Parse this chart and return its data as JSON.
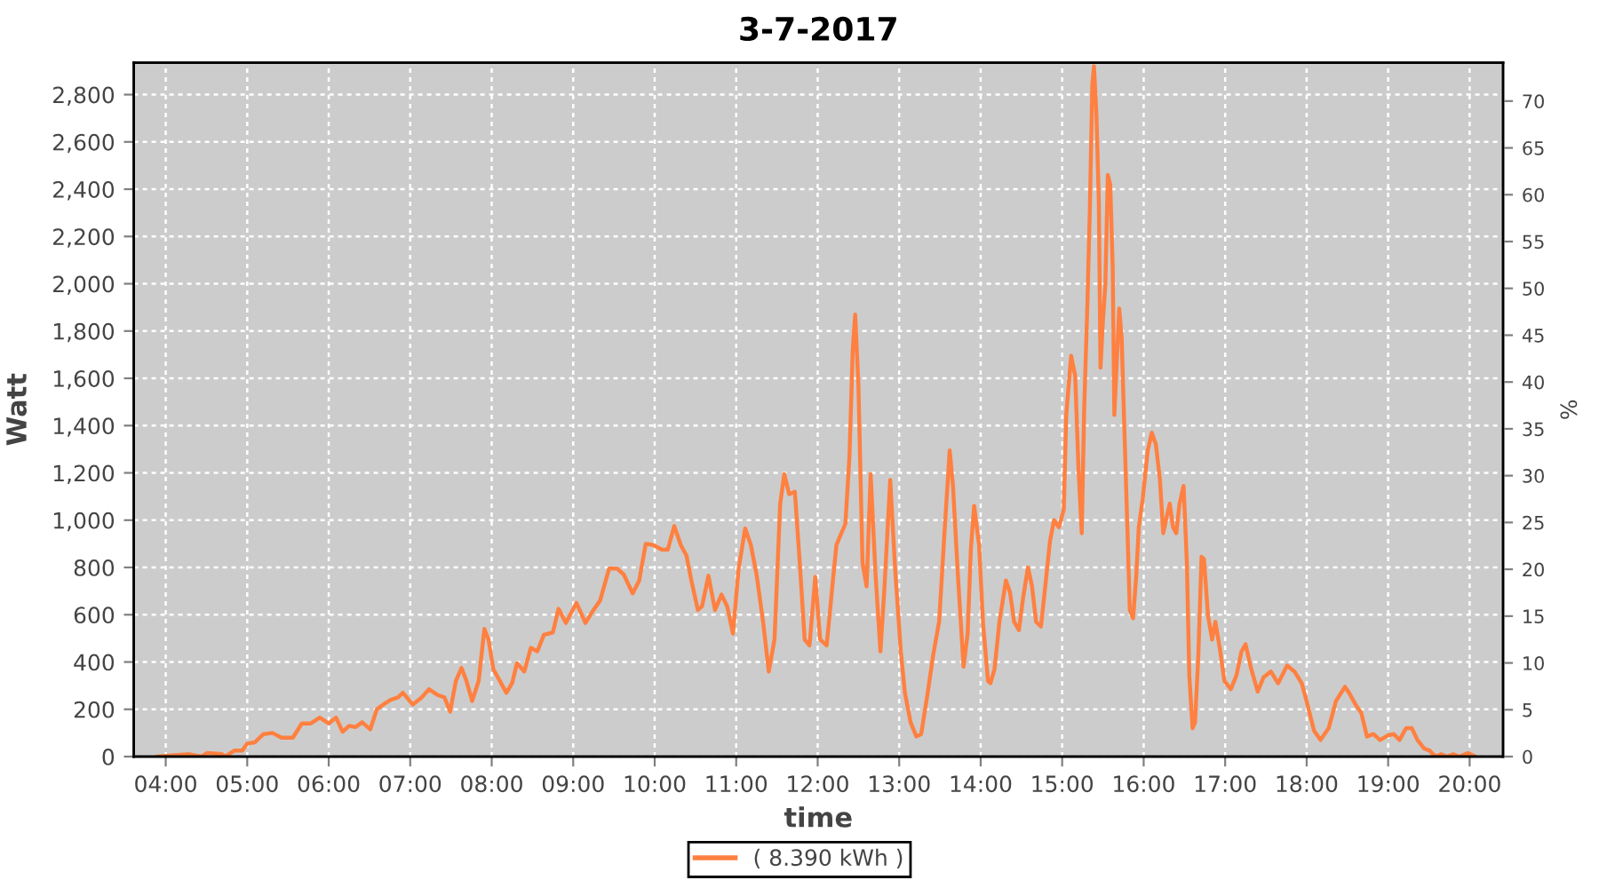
{
  "chart_data": {
    "type": "line",
    "title": "3-7-2017",
    "xlabel": "time",
    "ylabel": "Watt",
    "y2label": "%",
    "xlim": [
      3.608,
      20.41
    ],
    "xticks": [
      {
        "value": 4,
        "label": "04:00"
      },
      {
        "value": 5,
        "label": "05:00"
      },
      {
        "value": 6,
        "label": "06:00"
      },
      {
        "value": 7,
        "label": "07:00"
      },
      {
        "value": 8,
        "label": "08:00"
      },
      {
        "value": 9,
        "label": "09:00"
      },
      {
        "value": 10,
        "label": "10:00"
      },
      {
        "value": 11,
        "label": "11:00"
      },
      {
        "value": 12,
        "label": "12:00"
      },
      {
        "value": 13,
        "label": "13:00"
      },
      {
        "value": 14,
        "label": "14:00"
      },
      {
        "value": 15,
        "label": "15:00"
      },
      {
        "value": 16,
        "label": "16:00"
      },
      {
        "value": 17,
        "label": "17:00"
      },
      {
        "value": 18,
        "label": "18:00"
      },
      {
        "value": 19,
        "label": "19:00"
      },
      {
        "value": 20,
        "label": "20:00"
      }
    ],
    "ylim": [
      0,
      2935
    ],
    "yticks": [
      0,
      200,
      400,
      600,
      800,
      {
        "value": 1000,
        "label": "1,000"
      },
      {
        "value": 1200,
        "label": "1,200"
      },
      {
        "value": 1400,
        "label": "1,400"
      },
      {
        "value": 1600,
        "label": "1,600"
      },
      {
        "value": 1800,
        "label": "1,800"
      },
      {
        "value": 2000,
        "label": "2,000"
      },
      {
        "value": 2200,
        "label": "2,200"
      },
      {
        "value": 2400,
        "label": "2,400"
      },
      {
        "value": 2600,
        "label": "2,600"
      },
      {
        "value": 2800,
        "label": "2,800"
      }
    ],
    "y2lim": [
      0,
      74.1
    ],
    "y2ticks": [
      0,
      5,
      10,
      15,
      20,
      25,
      30,
      35,
      40,
      45,
      50,
      55,
      60,
      65,
      70
    ],
    "grid": true,
    "legend": "bottom",
    "line_style": "solid",
    "x": [
      3.89,
      4.29,
      4.44,
      4.51,
      4.69,
      4.73,
      4.84,
      4.94,
      5.0,
      5.09,
      5.2,
      5.31,
      5.42,
      5.56,
      5.67,
      5.78,
      5.89,
      6.0,
      6.09,
      6.17,
      6.25,
      6.33,
      6.41,
      6.51,
      6.59,
      6.69,
      6.76,
      6.85,
      6.91,
      7.03,
      7.14,
      7.23,
      7.34,
      7.42,
      7.49,
      7.56,
      7.63,
      7.69,
      7.76,
      7.84,
      7.91,
      7.96,
      8.02,
      8.1,
      8.18,
      8.25,
      8.31,
      8.4,
      8.48,
      8.56,
      8.64,
      8.75,
      8.82,
      8.91,
      9.04,
      9.15,
      9.23,
      9.33,
      9.44,
      9.54,
      9.62,
      9.73,
      9.81,
      9.89,
      9.98,
      10.09,
      10.16,
      10.24,
      10.32,
      10.39,
      10.45,
      10.53,
      10.58,
      10.66,
      10.74,
      10.82,
      10.89,
      10.96,
      11.03,
      11.11,
      11.18,
      11.25,
      11.33,
      11.4,
      11.47,
      11.54,
      11.59,
      11.65,
      11.72,
      11.78,
      11.84,
      11.9,
      11.97,
      12.03,
      12.11,
      12.18,
      12.23,
      12.34,
      12.39,
      12.43,
      12.46,
      12.5,
      12.55,
      12.6,
      12.65,
      12.71,
      12.77,
      12.82,
      12.89,
      12.95,
      13.02,
      13.07,
      13.14,
      13.21,
      13.27,
      13.35,
      13.42,
      13.49,
      13.56,
      13.62,
      13.66,
      13.72,
      13.79,
      13.84,
      13.88,
      13.92,
      13.98,
      14.03,
      14.09,
      14.12,
      14.17,
      14.23,
      14.31,
      14.36,
      14.41,
      14.47,
      14.52,
      14.58,
      14.63,
      14.68,
      14.74,
      14.8,
      14.85,
      14.9,
      14.96,
      15.02,
      15.05,
      15.11,
      15.16,
      15.2,
      15.24,
      15.27,
      15.31,
      15.34,
      15.37,
      15.39,
      15.42,
      15.45,
      15.47,
      15.5,
      15.53,
      15.56,
      15.59,
      15.62,
      15.64,
      15.67,
      15.7,
      15.73,
      15.76,
      15.8,
      15.83,
      15.87,
      15.91,
      15.94,
      15.99,
      16.05,
      16.1,
      16.15,
      16.2,
      16.24,
      16.28,
      16.32,
      16.36,
      16.4,
      16.44,
      16.49,
      16.53,
      16.56,
      16.6,
      16.63,
      16.67,
      16.71,
      16.74,
      16.79,
      16.84,
      16.88,
      16.94,
      16.99,
      17.07,
      17.14,
      17.2,
      17.25,
      17.32,
      17.4,
      17.47,
      17.56,
      17.65,
      17.76,
      17.85,
      17.94,
      18.01,
      18.09,
      18.17,
      18.27,
      18.36,
      18.47,
      18.52,
      18.6,
      18.67,
      18.74,
      18.82,
      18.9,
      19.0,
      19.07,
      19.14,
      19.22,
      19.29,
      19.36,
      19.44,
      19.51,
      19.58,
      19.65,
      19.72,
      19.8,
      19.87,
      19.98,
      20.07
    ],
    "series": [
      {
        "name": "( 8.390 kWh )",
        "color": "#ff8040",
        "values": [
          0,
          10,
          0,
          15,
          10,
          0,
          25,
          25,
          55,
          60,
          95,
          100,
          80,
          80,
          140,
          140,
          165,
          140,
          165,
          105,
          130,
          125,
          145,
          115,
          200,
          225,
          240,
          250,
          270,
          220,
          250,
          285,
          260,
          250,
          190,
          320,
          375,
          320,
          235,
          320,
          540,
          495,
          370,
          320,
          270,
          310,
          395,
          360,
          460,
          445,
          515,
          525,
          625,
          565,
          650,
          565,
          610,
          660,
          795,
          795,
          770,
          690,
          745,
          900,
          895,
          875,
          875,
          975,
          895,
          850,
          745,
          620,
          635,
          765,
          620,
          685,
          635,
          520,
          795,
          965,
          895,
          770,
          570,
          360,
          495,
          1070,
          1195,
          1110,
          1120,
          820,
          495,
          470,
          760,
          495,
          470,
          720,
          895,
          985,
          1270,
          1720,
          1870,
          1570,
          820,
          720,
          1195,
          770,
          445,
          720,
          1170,
          795,
          445,
          270,
          145,
          85,
          95,
          270,
          435,
          570,
          970,
          1295,
          1145,
          770,
          380,
          520,
          880,
          1060,
          895,
          560,
          320,
          310,
          370,
          570,
          745,
          695,
          570,
          535,
          670,
          800,
          720,
          570,
          550,
          745,
          910,
          1000,
          970,
          1045,
          1445,
          1695,
          1610,
          1220,
          945,
          1470,
          1920,
          2320,
          2845,
          2920,
          2720,
          2345,
          1645,
          1845,
          1995,
          2460,
          2420,
          2070,
          1445,
          1670,
          1895,
          1770,
          1420,
          970,
          620,
          585,
          770,
          970,
          1095,
          1295,
          1370,
          1320,
          1170,
          945,
          1010,
          1070,
          970,
          945,
          1070,
          1145,
          820,
          345,
          120,
          145,
          420,
          845,
          835,
          595,
          495,
          570,
          445,
          320,
          285,
          345,
          445,
          475,
          370,
          275,
          335,
          360,
          310,
          385,
          360,
          310,
          220,
          110,
          70,
          120,
          235,
          295,
          270,
          220,
          185,
          85,
          95,
          70,
          90,
          95,
          70,
          120,
          120,
          70,
          35,
          25,
          0,
          10,
          0,
          10,
          0,
          15,
          0
        ]
      }
    ]
  }
}
